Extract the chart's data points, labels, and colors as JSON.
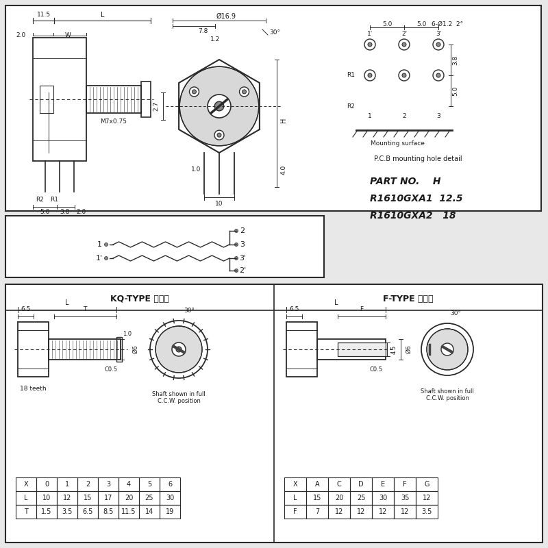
{
  "bg_color": "#e8e8e8",
  "box_color": "#ffffff",
  "line_color": "#2a2a2a",
  "text_color": "#1a1a1a",
  "section3": {
    "kq_title": "KQ-TYPE 齿形轴",
    "f_title": "F-TYPE 半圆轴",
    "kq_table_headers": [
      "X",
      "0",
      "1",
      "2",
      "3",
      "4",
      "5",
      "6"
    ],
    "kq_table_L": [
      "L",
      "10",
      "12",
      "15",
      "17",
      "20",
      "25",
      "30"
    ],
    "kq_table_T": [
      "T",
      "1.5",
      "3.5",
      "6.5",
      "8.5",
      "11.5",
      "14",
      "19"
    ],
    "f_table_headers": [
      "X",
      "A",
      "C",
      "D",
      "E",
      "F",
      "G"
    ],
    "f_table_L": [
      "L",
      "15",
      "20",
      "25",
      "30",
      "35",
      "12"
    ],
    "f_table_F": [
      "F",
      "7",
      "12",
      "12",
      "12",
      "12",
      "3.5"
    ]
  }
}
